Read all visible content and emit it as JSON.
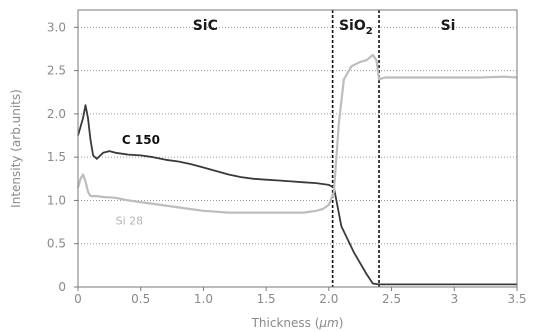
{
  "chart_data": {
    "type": "line",
    "xlabel": "Thickness (",
    "xlabel_unit": "µm",
    "xlabel_close": ")",
    "ylabel": "Intensity (arb.units)",
    "xlim": [
      0,
      3.5
    ],
    "ylim": [
      0,
      3.2
    ],
    "x_ticks": [
      "0",
      "0.5",
      "1.0",
      "1.5",
      "2.0",
      "2.5",
      "3",
      "3.5"
    ],
    "x_tick_values": [
      0,
      0.5,
      1.0,
      1.5,
      2.0,
      2.5,
      3.0,
      3.5
    ],
    "y_ticks": [
      "0",
      "0.5",
      "1.0",
      "1.5",
      "2.0",
      "2.5",
      "3.0"
    ],
    "y_tick_values": [
      0,
      0.5,
      1.0,
      1.5,
      2.0,
      2.5,
      3.0
    ],
    "grid": "horizontal dotted",
    "regions": [
      {
        "label": "SiC",
        "x_from": 0,
        "x_to": 2.03
      },
      {
        "label": "SiO",
        "sub": "2",
        "x_from": 2.03,
        "x_to": 2.4
      },
      {
        "label": "Si",
        "x_from": 2.4,
        "x_to": 3.5
      }
    ],
    "boundaries": [
      2.03,
      2.4
    ],
    "series": [
      {
        "name": "C 150",
        "color": "#3a3a3a",
        "label_pos": [
          0.35,
          1.65
        ],
        "x": [
          0,
          0.02,
          0.04,
          0.06,
          0.08,
          0.1,
          0.12,
          0.15,
          0.2,
          0.25,
          0.3,
          0.4,
          0.5,
          0.6,
          0.7,
          0.8,
          0.9,
          1.0,
          1.1,
          1.2,
          1.3,
          1.4,
          1.5,
          1.6,
          1.7,
          1.8,
          1.9,
          2.0,
          2.04,
          2.1,
          2.2,
          2.3,
          2.35,
          2.4,
          2.45,
          2.6,
          2.8,
          3.0,
          3.2,
          3.4,
          3.5
        ],
        "y": [
          1.75,
          1.85,
          1.95,
          2.1,
          1.95,
          1.7,
          1.52,
          1.48,
          1.55,
          1.57,
          1.55,
          1.53,
          1.52,
          1.5,
          1.47,
          1.45,
          1.42,
          1.38,
          1.34,
          1.3,
          1.27,
          1.25,
          1.24,
          1.23,
          1.22,
          1.21,
          1.2,
          1.18,
          1.15,
          0.7,
          0.4,
          0.15,
          0.04,
          0.03,
          0.03,
          0.03,
          0.03,
          0.03,
          0.03,
          0.03,
          0.03
        ]
      },
      {
        "name": "Si 28",
        "color": "#bdbdbd",
        "label_pos": [
          0.3,
          0.72
        ],
        "x": [
          0,
          0.02,
          0.04,
          0.06,
          0.08,
          0.1,
          0.15,
          0.2,
          0.3,
          0.4,
          0.5,
          0.6,
          0.7,
          0.8,
          0.9,
          1.0,
          1.1,
          1.2,
          1.3,
          1.4,
          1.5,
          1.6,
          1.7,
          1.8,
          1.9,
          1.95,
          2.0,
          2.04,
          2.08,
          2.12,
          2.18,
          2.25,
          2.3,
          2.35,
          2.38,
          2.4,
          2.45,
          2.6,
          2.8,
          3.0,
          3.2,
          3.4,
          3.5
        ],
        "y": [
          1.15,
          1.25,
          1.3,
          1.22,
          1.1,
          1.05,
          1.05,
          1.04,
          1.03,
          1.0,
          0.98,
          0.96,
          0.94,
          0.92,
          0.9,
          0.88,
          0.87,
          0.86,
          0.86,
          0.86,
          0.86,
          0.86,
          0.86,
          0.86,
          0.88,
          0.9,
          0.95,
          1.1,
          1.9,
          2.4,
          2.55,
          2.6,
          2.62,
          2.68,
          2.62,
          2.4,
          2.42,
          2.42,
          2.42,
          2.42,
          2.42,
          2.43,
          2.42
        ]
      }
    ]
  }
}
